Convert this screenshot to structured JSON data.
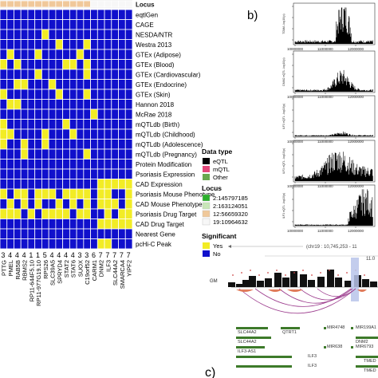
{
  "heatmap": {
    "title": "Locus",
    "rows": [
      "eqtlGen",
      "CAGE",
      "NESDA/NTR",
      "Westra 2013",
      "GTEx (Adipose)",
      "GTEx (Blood)",
      "GTEx (Cardiovascular)",
      "GTEx (Endocrine)",
      "GTEx (Skin)",
      "Hannon 2018",
      "McRae 2018",
      "mQTLdb (Birth)",
      "mQTLdb (Childhood)",
      "mQTLdb (Adolescence)",
      "mQTLdb (Pregnancy)",
      "Protein Modification",
      "Psoriasis Expression",
      "CAD Expression",
      "Psoriasis Mouse Phenotype",
      "CAD Mouse Phenotype",
      "Psoriasis Drug Target",
      "CAD Drug Target",
      "Nearest Gene",
      "pcHi-C Peak"
    ],
    "columns": [
      "PTTG",
      "PMEL",
      "RAB5B",
      "RBMS2",
      "RP11-644F5.10",
      "RP11-977G19.10",
      "RPS26",
      "SLC39A5",
      "SPRYD4",
      "STAT2",
      "STAT6",
      "SUOX",
      "C19orf52",
      "CARM1",
      "DNM2",
      "ILF3",
      "SLC44A2",
      "SMARCA4",
      "YIPF2"
    ],
    "column_digits": [
      "3",
      "4",
      "4",
      "4",
      "1",
      "1",
      "5",
      "4",
      "4",
      "4",
      "4",
      "3",
      "3",
      "6",
      "7",
      "7",
      "7",
      "7",
      "7"
    ],
    "locus_colors": [
      "#f0c89a",
      "#f0c89a",
      "#f0c89a",
      "#f0c89a",
      "#f0c89a",
      "#f0c89a",
      "#f0c89a",
      "#f0c89a",
      "#f0c89a",
      "#f0c89a",
      "#f0c89a",
      "#f0c89a",
      "#f0c89a",
      "#f7f7f7",
      "#f7f7f7",
      "#f7f7f7",
      "#f7f7f7",
      "#f7f7f7",
      "#f7f7f7"
    ],
    "matrix": [
      "0000000000000000000",
      "0000000000000000000",
      "0000001000000000000",
      "0000000010001000000",
      "0100010000010000000",
      "1010000001101000000",
      "0000010000001000000",
      "0011000100000000000",
      "1000000010001000000",
      "0110000000000000000",
      "0000000000000100000",
      "1000000001000000000",
      "1100001000100000000",
      "1001001000000000000",
      "0001000000001000000",
      "0000000000000000000",
      "0000000000000000000",
      "0000000000000011111",
      "1011011101111011001",
      "0101010010101011101",
      "1110101111011001011",
      "0000000000000011111",
      "0000000000000000000",
      "0000000000000011000"
    ],
    "yes_color": "#f2ec25",
    "no_color": "#1010cc"
  },
  "legend": {
    "data_type_title": "Data type",
    "data_types": [
      {
        "label": "eQTL",
        "color": "#000000"
      },
      {
        "label": "mQTL",
        "color": "#e2487a"
      },
      {
        "label": "Other",
        "color": "#6aa84f"
      }
    ],
    "locus_title": "Locus",
    "loci": [
      {
        "label": "2:145797185",
        "color": "#2bb02b"
      },
      {
        "label": "2:163124051",
        "color": "#c8e6b8"
      },
      {
        "label": "12:56659320",
        "color": "#f0c89a"
      },
      {
        "label": "19:10964632",
        "color": "#f7f7f7"
      }
    ],
    "significant_title": "Significant",
    "significant": [
      {
        "label": "Yes",
        "color": "#f2ec25"
      },
      {
        "label": "No",
        "color": "#1010cc"
      }
    ]
  },
  "panel_b": {
    "label": "b)",
    "tracks": [
      {
        "ylabel": "TDMA -log10(p)"
      },
      {
        "ylabel": "DNM2 eQTL -log10(p)"
      },
      {
        "ylabel": "ILF3 eQTL -log10(p)"
      },
      {
        "ylabel": "ILF3 eQTL -log10(p)"
      },
      {
        "ylabel": "ILF3 eQTL -log10(p)"
      }
    ],
    "xticks": [
      "10000000",
      "11000000",
      "12000000"
    ]
  },
  "panel_c": {
    "label": "c)",
    "region": "(chr19 : 10,745,253 - 11",
    "side_label": "11.0",
    "track_label": "GM",
    "genes": [
      {
        "name": "SLC44A2"
      },
      {
        "name": "QTRT1"
      },
      {
        "name": "MIR4748"
      },
      {
        "name": "MIR199A1"
      },
      {
        "name": "SLC44A2"
      },
      {
        "name": "DNM2"
      },
      {
        "name": "ILF3-AS1"
      },
      {
        "name": "MIR638"
      },
      {
        "name": "MIR6793"
      },
      {
        "name": "ILF3"
      },
      {
        "name": "TMED"
      },
      {
        "name": "ILF3"
      },
      {
        "name": "TMED"
      }
    ]
  }
}
